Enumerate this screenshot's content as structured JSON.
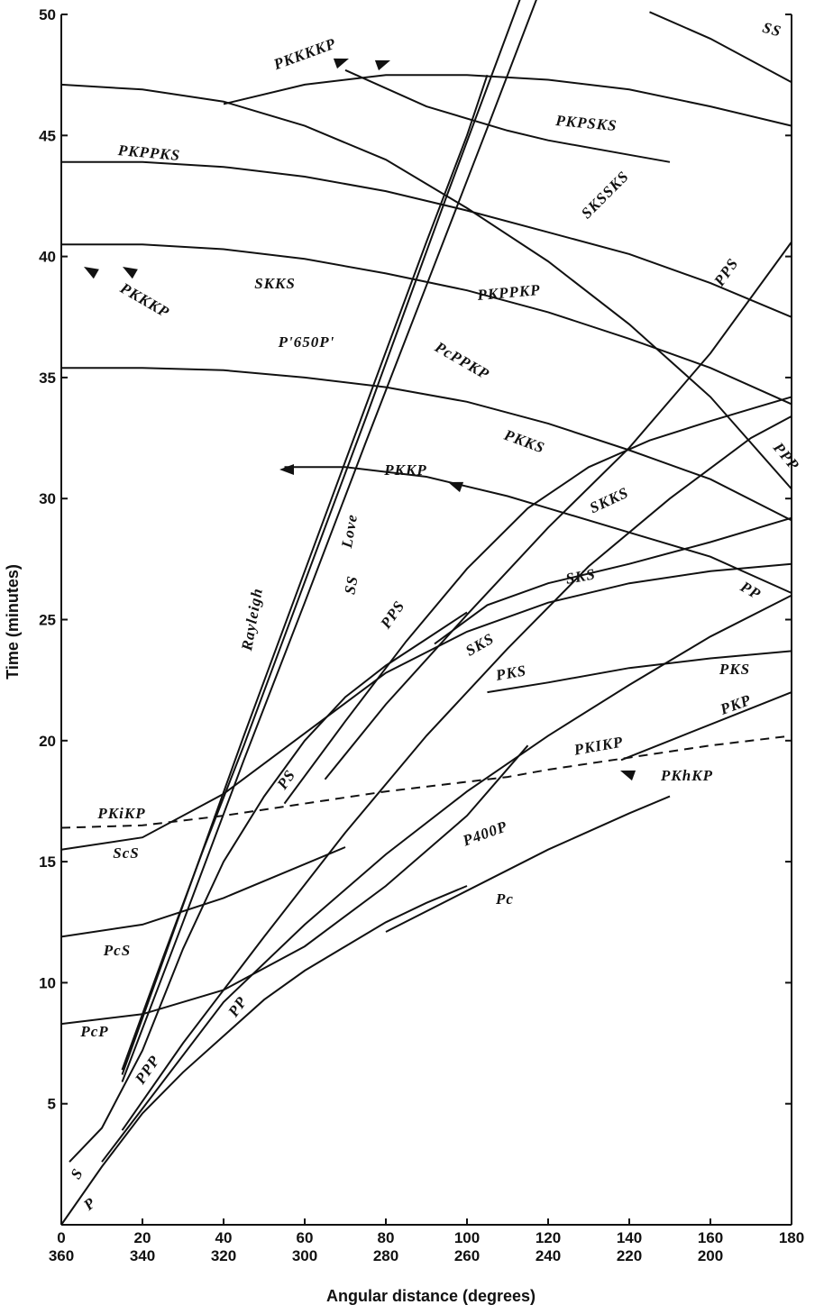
{
  "chart_data": {
    "type": "line",
    "title": "",
    "xlabel": "Angular distance (degrees)",
    "ylabel": "Time (minutes)",
    "xlim": [
      0,
      180
    ],
    "ylim": [
      0,
      50
    ],
    "x_ticks": [
      0,
      20,
      40,
      60,
      80,
      100,
      120,
      140,
      160,
      180
    ],
    "x_ticks_secondary": [
      "360",
      "340",
      "320",
      "300",
      "280",
      "260",
      "240",
      "220",
      "200",
      ""
    ],
    "y_ticks": [
      5,
      10,
      15,
      20,
      25,
      30,
      35,
      40,
      45,
      50
    ],
    "series": [
      {
        "name": "P",
        "x": [
          0,
          10,
          20,
          30,
          40,
          50,
          60,
          70,
          80,
          90,
          100
        ],
        "y": [
          0,
          2.4,
          4.6,
          6.3,
          7.8,
          9.3,
          10.5,
          11.5,
          12.5,
          13.3,
          14.0
        ]
      },
      {
        "name": "Pc",
        "x": [
          80,
          100,
          120,
          140,
          150
        ],
        "y": [
          12.1,
          13.8,
          15.5,
          17.0,
          17.7
        ]
      },
      {
        "name": "PP",
        "x": [
          10,
          20,
          40,
          60,
          80,
          100,
          120,
          140,
          160,
          180
        ],
        "y": [
          2.6,
          4.8,
          9.2,
          12.4,
          15.3,
          17.9,
          20.2,
          22.3,
          24.3,
          26.0
        ]
      },
      {
        "name": "PPP",
        "x": [
          15,
          30,
          50,
          70,
          90,
          110,
          130,
          150,
          170,
          180
        ],
        "y": [
          3.9,
          7.5,
          11.9,
          16.2,
          20.2,
          23.8,
          27.2,
          30.0,
          32.5,
          33.4
        ]
      },
      {
        "name": "S",
        "x": [
          2,
          10,
          20,
          30,
          40,
          50,
          60,
          70,
          80,
          90,
          100
        ],
        "y": [
          2.6,
          4.0,
          7.2,
          11.4,
          15.0,
          17.7,
          20.0,
          21.8,
          23.1,
          24.2,
          25.3
        ]
      },
      {
        "name": "SS",
        "x": [
          15,
          25,
          35,
          45,
          55,
          65,
          75,
          85,
          95,
          105,
          115
        ],
        "y": [
          6.4,
          11.0,
          15.5,
          19.8,
          24.3,
          28.8,
          33.3,
          37.9,
          42.5,
          47.0,
          51.5
        ]
      },
      {
        "name": "Rayleigh",
        "x": [
          15,
          30,
          45,
          60,
          75,
          90,
          100,
          105
        ],
        "y": [
          6.2,
          13.2,
          20.2,
          27.0,
          33.8,
          40.6,
          45.0,
          47.5
        ]
      },
      {
        "name": "Love",
        "x": [
          15,
          30,
          45,
          60,
          75,
          90,
          105,
          118
        ],
        "y": [
          5.9,
          12.5,
          19.2,
          25.7,
          32.3,
          38.8,
          45.3,
          51.0
        ]
      },
      {
        "name": "PcP",
        "x": [
          0,
          20,
          40,
          60,
          80,
          100,
          115
        ],
        "y": [
          8.3,
          8.7,
          9.7,
          11.5,
          14.0,
          16.9,
          19.8
        ]
      },
      {
        "name": "PcS",
        "x": [
          0,
          20,
          40,
          60,
          70
        ],
        "y": [
          11.9,
          12.4,
          13.5,
          14.9,
          15.6
        ]
      },
      {
        "name": "ScS",
        "x": [
          0,
          20,
          40,
          60,
          80,
          100,
          120,
          140,
          160,
          180
        ],
        "y": [
          15.5,
          16.0,
          17.8,
          20.3,
          22.8,
          24.5,
          25.7,
          26.5,
          27.0,
          27.3
        ]
      },
      {
        "name": "PKiKP",
        "x": [
          0,
          20,
          40,
          60,
          80,
          100,
          110,
          120,
          140,
          160,
          180
        ],
        "y": [
          16.4,
          16.5,
          16.9,
          17.4,
          17.9,
          18.3,
          18.5,
          18.8,
          19.3,
          19.8,
          20.2
        ]
      },
      {
        "name": "PKP",
        "x": [
          138,
          150,
          165,
          180
        ],
        "y": [
          19.2,
          20.0,
          21.0,
          22.0
        ]
      },
      {
        "name": "PKS",
        "x": [
          105,
          120,
          140,
          160,
          180
        ],
        "y": [
          22.0,
          22.4,
          23.0,
          23.4,
          23.7
        ]
      },
      {
        "name": "SKS",
        "x": [
          92,
          105,
          120,
          140,
          160,
          180
        ],
        "y": [
          24.0,
          25.6,
          26.5,
          27.3,
          28.2,
          29.2
        ]
      },
      {
        "name": "PS",
        "x": [
          55,
          70,
          85,
          100,
          115,
          130,
          145,
          160,
          172,
          180
        ],
        "y": [
          17.4,
          20.8,
          24.1,
          27.1,
          29.6,
          31.3,
          32.4,
          33.2,
          33.8,
          34.2
        ]
      },
      {
        "name": "PPS",
        "x": [
          65,
          80,
          100,
          120,
          140,
          160,
          180
        ],
        "y": [
          18.4,
          21.5,
          25.2,
          28.8,
          32.1,
          36.0,
          40.6
        ]
      },
      {
        "name": "PKKP",
        "x": [
          55,
          70,
          90,
          110,
          120,
          140,
          160,
          180
        ],
        "y": [
          31.3,
          31.3,
          30.9,
          30.1,
          29.6,
          28.6,
          27.6,
          26.1
        ]
      },
      {
        "name": "PKKS",
        "x": [
          0,
          20,
          40,
          60,
          80,
          100,
          120,
          140,
          160,
          180
        ],
        "y": [
          35.4,
          35.4,
          35.3,
          35.0,
          34.6,
          34.0,
          33.1,
          32.0,
          30.8,
          29.1
        ]
      },
      {
        "name": "SKKS",
        "x": [
          0,
          20,
          40,
          60,
          80,
          100,
          120,
          140,
          160,
          180
        ],
        "y": [
          47.1,
          46.9,
          46.4,
          45.4,
          44.0,
          42.0,
          39.8,
          37.2,
          34.2,
          30.4
        ]
      },
      {
        "name": "PKPPKS",
        "x": [
          0,
          20,
          40,
          60,
          80,
          100,
          120,
          140,
          160,
          180
        ],
        "y": [
          43.9,
          43.9,
          43.7,
          43.3,
          42.7,
          41.9,
          41.0,
          40.1,
          38.9,
          37.5
        ]
      },
      {
        "name": "PKPPKP",
        "x": [
          0,
          20,
          40,
          60,
          80,
          100,
          120,
          140,
          160,
          180
        ],
        "y": [
          40.5,
          40.5,
          40.3,
          39.9,
          39.3,
          38.6,
          37.7,
          36.6,
          35.4,
          33.9
        ]
      },
      {
        "name": "PKKKP",
        "x": [
          40,
          60,
          80,
          100,
          120,
          140,
          160,
          180
        ],
        "y": [
          46.3,
          47.1,
          47.5,
          47.5,
          47.3,
          46.9,
          46.2,
          45.4
        ]
      },
      {
        "name": "PKPSKS",
        "x": [
          70,
          90,
          110,
          120,
          140,
          150
        ],
        "y": [
          47.7,
          46.2,
          45.2,
          44.8,
          44.2,
          43.9
        ]
      },
      {
        "name": "SS (late)",
        "x": [
          145,
          160,
          180
        ],
        "y": [
          50.1,
          49.0,
          47.2
        ]
      }
    ],
    "labels": [
      "P",
      "S",
      "PP",
      "PPP",
      "PcP",
      "PcS",
      "ScS",
      "Rayleigh",
      "SS",
      "Love",
      "PS",
      "PPS",
      "SKS",
      "PKS",
      "PKiKP",
      "PKIKP",
      "PKhKP",
      "PKP",
      "P400P",
      "Pc",
      "PKKP",
      "PKKS",
      "SKKS",
      "SKS",
      "PcPPKP",
      "PP",
      "PPP",
      "PKS",
      "PKPPKP",
      "P'650P'",
      "PKPPKS",
      "PKKKP",
      "SKKS",
      "SKSSKS",
      "PPS",
      "PKPSKS",
      "PKKKKP",
      "SS"
    ]
  }
}
